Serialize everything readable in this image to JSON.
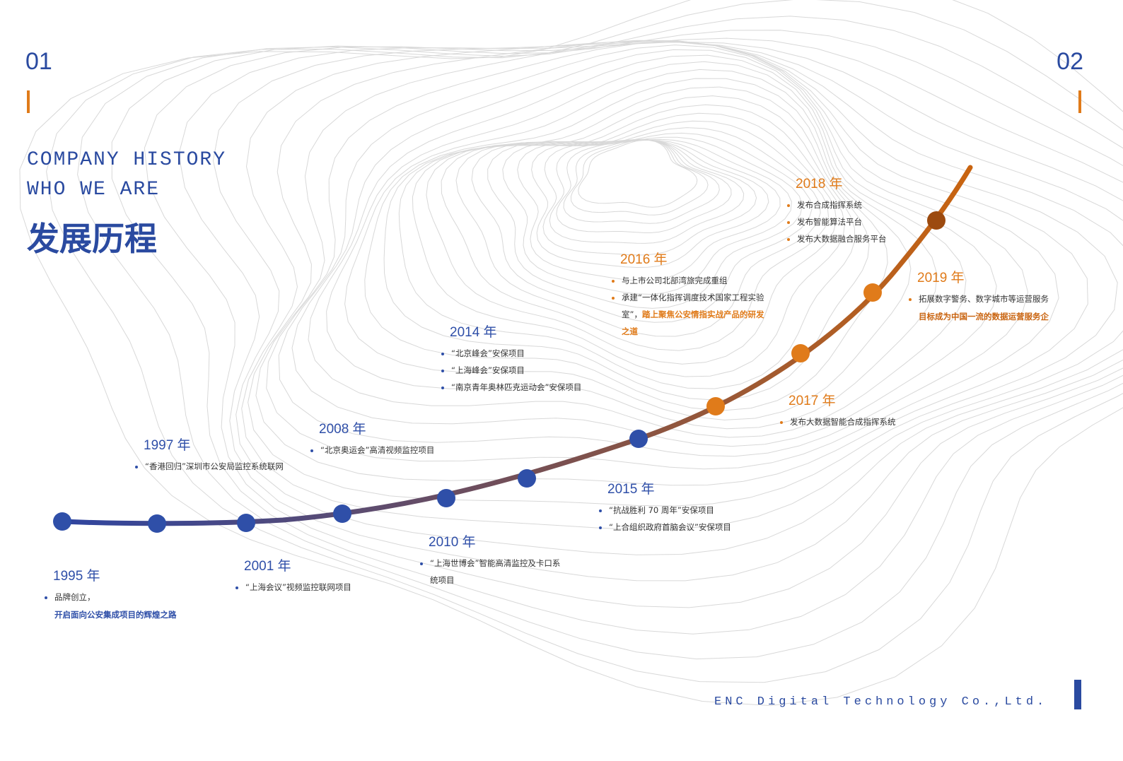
{
  "header": {
    "left_number": "01",
    "right_number": "02",
    "title_en_1": "COMPANY HISTORY",
    "title_en_2": "WHO WE ARE",
    "title_cn": "发展历程"
  },
  "milestones": [
    {
      "year": "1995 年",
      "color": "#2f4fa8",
      "items": [
        "品牌创立，"
      ],
      "note": "开启面向公安集成项目的辉煌之路"
    },
    {
      "year": "1997 年",
      "color": "#2f4fa8",
      "items": [
        "“香港回归”深圳市公安局监控系统联网"
      ]
    },
    {
      "year": "2001 年",
      "color": "#2f4fa8",
      "items": [
        "“上海会议”视频监控联网项目"
      ]
    },
    {
      "year": "2008 年",
      "color": "#2f4fa8",
      "items": [
        "“北京奥运会”高清视频监控项目"
      ]
    },
    {
      "year": "2010 年",
      "color": "#2f4fa8",
      "items": [
        "“上海世博会”智能高清监控及卡口系统项目"
      ]
    },
    {
      "year": "2014 年",
      "color": "#2f4fa8",
      "items": [
        "“北京峰会”安保项目",
        "“上海峰会”安保项目",
        "“南京青年奥林匹克运动会”安保项目"
      ]
    },
    {
      "year": "2015 年",
      "color": "#2f4fa8",
      "items": [
        "“抗战胜利 70 周年”安保项目",
        "“上合组织政府首脑会议”安保项目"
      ]
    },
    {
      "year": "2016 年",
      "color": "#e07b1a",
      "items": [
        "与上市公司北部湾旅完成重组",
        "承建“一体化指挥调度技术国家工程实验室”，"
      ],
      "note": "踏上聚焦公安情指实战产品的研发之道"
    },
    {
      "year": "2017 年",
      "color": "#e07b1a",
      "items": [
        "发布大数据智能合成指挥系统"
      ]
    },
    {
      "year": "2018 年",
      "color": "#e07b1a",
      "items": [
        "发布合成指挥系统",
        "发布智能算法平台",
        "发布大数据融合服务平台"
      ]
    },
    {
      "year": "2019 年",
      "color": "#e07b1a",
      "items": [
        "拓展数字警务、数字城市等运营服务"
      ],
      "note": "目标成为中国一流的数据运营服务企"
    }
  ],
  "footer": "ENC Digital Technology Co.,Ltd."
}
